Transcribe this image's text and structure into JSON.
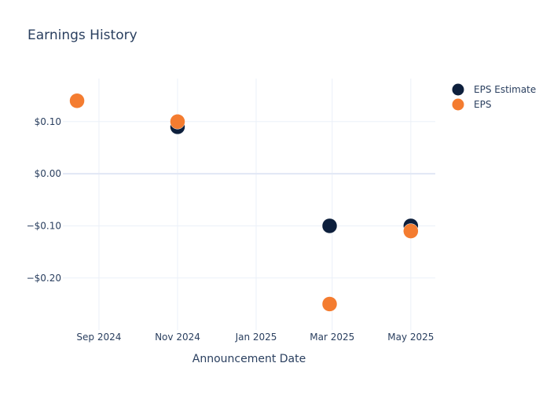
{
  "chart_data": {
    "type": "scatter",
    "title": "Earnings History",
    "xlabel": "Announcement Date",
    "ylabel": "",
    "x_ticks": [
      {
        "date": "2024-09-01",
        "label": "Sep 2024"
      },
      {
        "date": "2024-11-01",
        "label": "Nov 2024"
      },
      {
        "date": "2025-01-01",
        "label": "Jan 2025"
      },
      {
        "date": "2025-03-01",
        "label": "Mar 2025"
      },
      {
        "date": "2025-05-01",
        "label": "May 2025"
      }
    ],
    "y_ticks": [
      {
        "value": 0.1,
        "label": "$0.10"
      },
      {
        "value": 0.0,
        "label": "$0.00"
      },
      {
        "value": -0.1,
        "label": "−$0.10"
      },
      {
        "value": -0.2,
        "label": "−$0.20"
      }
    ],
    "xlim": [
      "2024-08-04",
      "2025-05-20"
    ],
    "ylim": [
      -0.2998,
      0.1826
    ],
    "grid": true,
    "legend_position": "top-right",
    "series": [
      {
        "name": "EPS Estimate",
        "color": "#0d1f3c",
        "points": [
          {
            "x": "2024-08-15",
            "y": 0.14
          },
          {
            "x": "2024-11-01",
            "y": 0.09
          },
          {
            "x": "2025-02-27",
            "y": -0.1
          },
          {
            "x": "2025-05-01",
            "y": -0.1
          }
        ]
      },
      {
        "name": "EPS",
        "color": "#f47c30",
        "points": [
          {
            "x": "2024-08-15",
            "y": 0.14
          },
          {
            "x": "2024-11-01",
            "y": 0.1
          },
          {
            "x": "2025-02-27",
            "y": -0.25
          },
          {
            "x": "2025-05-01",
            "y": -0.11
          }
        ]
      }
    ]
  }
}
